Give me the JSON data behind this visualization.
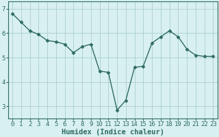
{
  "x": [
    0,
    1,
    2,
    3,
    4,
    5,
    6,
    7,
    8,
    9,
    10,
    11,
    12,
    13,
    14,
    15,
    16,
    17,
    18,
    19,
    20,
    21,
    22,
    23
  ],
  "y": [
    6.8,
    6.45,
    6.1,
    5.95,
    5.7,
    5.65,
    5.55,
    5.2,
    5.45,
    5.55,
    4.45,
    4.4,
    2.85,
    3.25,
    4.6,
    4.65,
    5.6,
    5.85,
    6.1,
    5.85,
    5.35,
    5.1,
    5.05,
    5.05
  ],
  "line_color": "#2e6b5e",
  "marker": "D",
  "marker_size": 2.5,
  "bg_color": "#d8f0f0",
  "grid_color": "#aacece",
  "xlabel": "Humidex (Indice chaleur)",
  "ylim": [
    2.5,
    7.3
  ],
  "xlim": [
    -0.5,
    23.5
  ],
  "yticks": [
    3,
    4,
    5,
    6,
    7
  ],
  "xticks": [
    0,
    1,
    2,
    3,
    4,
    5,
    6,
    7,
    8,
    9,
    10,
    11,
    12,
    13,
    14,
    15,
    16,
    17,
    18,
    19,
    20,
    21,
    22,
    23
  ],
  "xlabel_fontsize": 7.5,
  "tick_fontsize": 6.5,
  "linewidth": 1.0
}
